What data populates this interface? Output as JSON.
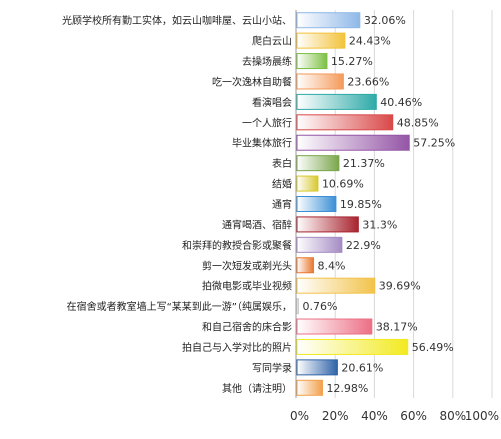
{
  "chart_data": {
    "type": "bar",
    "orientation": "horizontal",
    "title": "",
    "xlabel": "",
    "ylabel": "",
    "xlim": [
      0,
      100
    ],
    "x_ticks": [
      "0%",
      "20%",
      "40%",
      "60%",
      "80%",
      "100%"
    ],
    "grid": true,
    "categories": [
      "光顾学校所有勤工实体，如云山咖啡屋、云山小站、",
      "爬白云山",
      "去操场晨练",
      "吃一次逸林自助餐",
      "看演唱会",
      "一个人旅行",
      "毕业集体旅行",
      "表白",
      "结婚",
      "通宵",
      "通宵喝酒、宿醉",
      "和崇拜的教授合影或聚餐",
      "剪一次短发或剃光头",
      "拍微电影或毕业视频",
      "在宿舍或者教室墙上写“某某到此一游”（纯属娱乐，",
      "和自己宿舍的床合影",
      "拍自己与入学对比的照片",
      "写同学录",
      "其他（请注明）"
    ],
    "values": [
      32.06,
      24.43,
      15.27,
      23.66,
      40.46,
      48.85,
      57.25,
      21.37,
      10.69,
      19.85,
      31.3,
      22.9,
      8.4,
      39.69,
      0.76,
      38.17,
      56.49,
      20.61,
      12.98
    ],
    "value_labels": [
      "32.06%",
      "24.43%",
      "15.27%",
      "23.66%",
      "40.46%",
      "48.85%",
      "57.25%",
      "21.37%",
      "10.69%",
      "19.85%",
      "31.3%",
      "22.9%",
      "8.4%",
      "39.69%",
      "0.76%",
      "38.17%",
      "56.49%",
      "20.61%",
      "12.98%"
    ],
    "colors": [
      "#8fb8e8",
      "#f2c23a",
      "#7cc043",
      "#f49a5a",
      "#2eaaa8",
      "#d94848",
      "#9455a6",
      "#7aa64c",
      "#d8c830",
      "#3b8fd6",
      "#a8232e",
      "#a58bc4",
      "#e8772e",
      "#f2c24a",
      "#cfcfcf",
      "#ec6f85",
      "#f2ea20",
      "#2f63a8",
      "#f2a04a"
    ]
  }
}
